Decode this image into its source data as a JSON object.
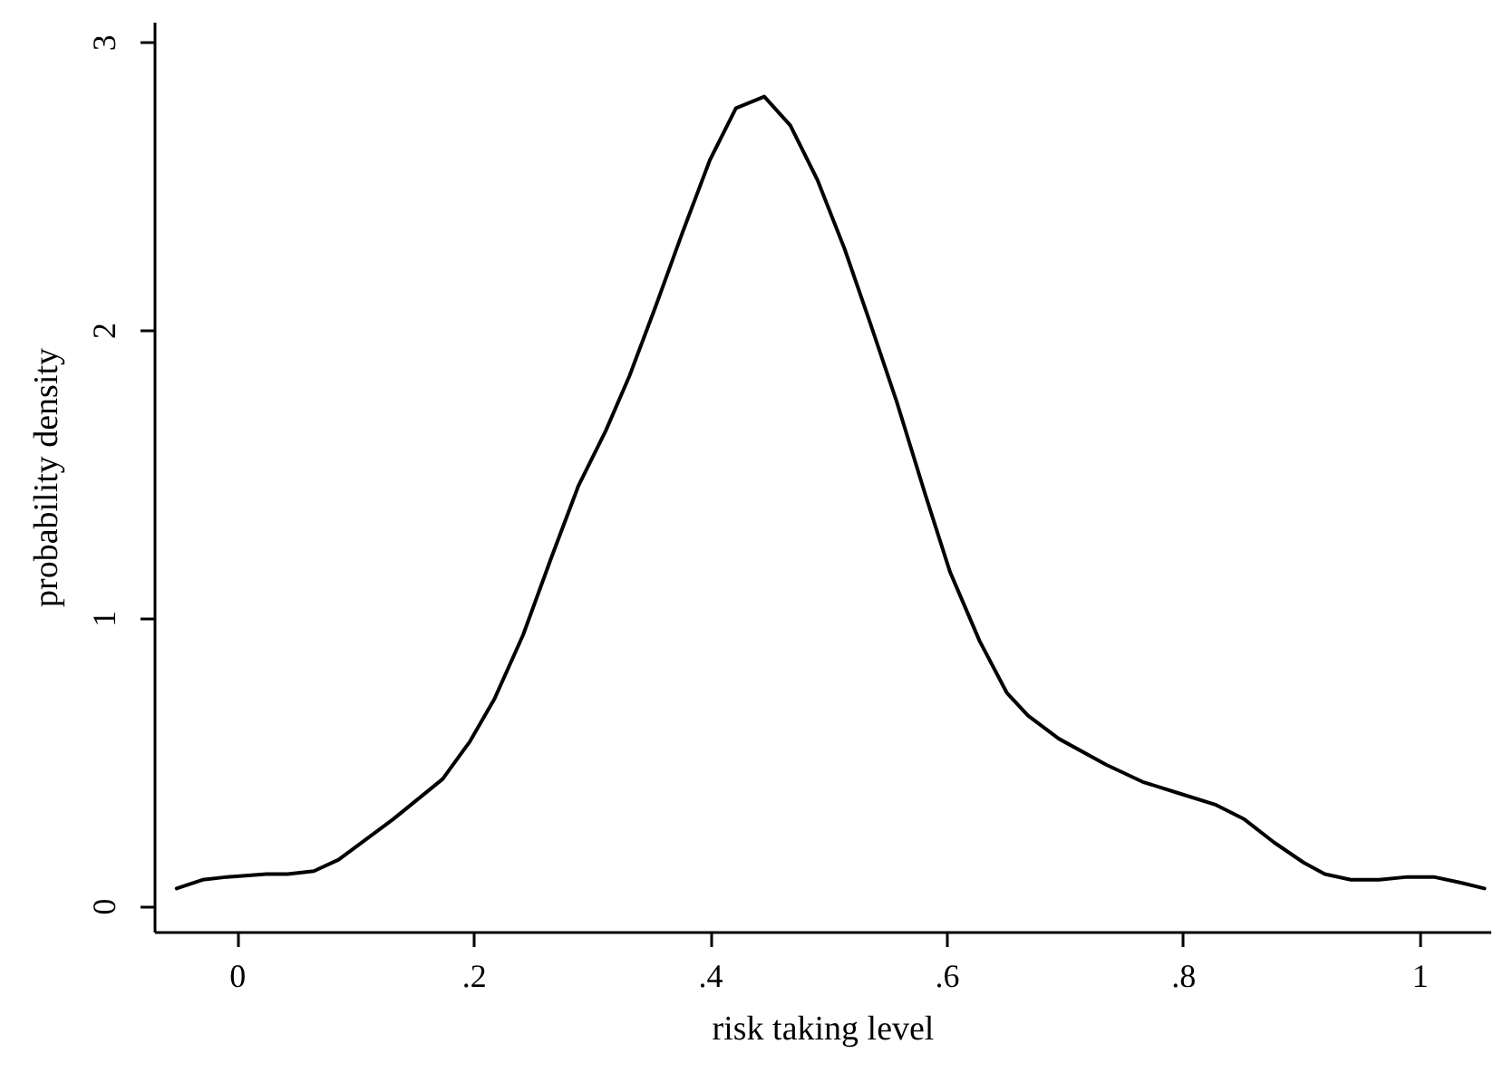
{
  "chart_data": {
    "type": "line",
    "xlabel": "risk taking level",
    "ylabel": "probability density",
    "xlim": [
      -0.07,
      1.06
    ],
    "ylim": [
      -0.09,
      3.07
    ],
    "xticks": [
      {
        "value": 0,
        "label": "0"
      },
      {
        "value": 0.2,
        "label": ".2"
      },
      {
        "value": 0.4,
        "label": ".4"
      },
      {
        "value": 0.6,
        "label": ".6"
      },
      {
        "value": 0.8,
        "label": ".8"
      },
      {
        "value": 1,
        "label": "1"
      }
    ],
    "yticks": [
      0,
      1,
      2,
      3
    ],
    "grid": false,
    "marker": "none",
    "line_style": "solid",
    "series": [
      {
        "color": "#000000",
        "x": [
          -0.051,
          -0.029,
          -0.008,
          0.025,
          0.043,
          0.065,
          0.086,
          0.109,
          0.132,
          0.174,
          0.197,
          0.218,
          0.242,
          0.266,
          0.289,
          0.312,
          0.332,
          0.354,
          0.377,
          0.4,
          0.422,
          0.446,
          0.468,
          0.491,
          0.514,
          0.535,
          0.558,
          0.582,
          0.603,
          0.628,
          0.651,
          0.669,
          0.695,
          0.735,
          0.766,
          0.797,
          0.828,
          0.852,
          0.877,
          0.902,
          0.92,
          0.942,
          0.966,
          0.99,
          1.012,
          1.035,
          1.055
        ],
        "values": [
          0.06,
          0.09,
          0.1,
          0.11,
          0.11,
          0.12,
          0.16,
          0.23,
          0.3,
          0.44,
          0.57,
          0.72,
          0.94,
          1.21,
          1.46,
          1.65,
          1.84,
          2.08,
          2.34,
          2.59,
          2.77,
          2.81,
          2.71,
          2.52,
          2.28,
          2.03,
          1.75,
          1.43,
          1.16,
          0.92,
          0.74,
          0.66,
          0.58,
          0.49,
          0.43,
          0.39,
          0.35,
          0.3,
          0.22,
          0.15,
          0.11,
          0.09,
          0.09,
          0.1,
          0.1,
          0.08,
          0.06
        ]
      }
    ]
  }
}
